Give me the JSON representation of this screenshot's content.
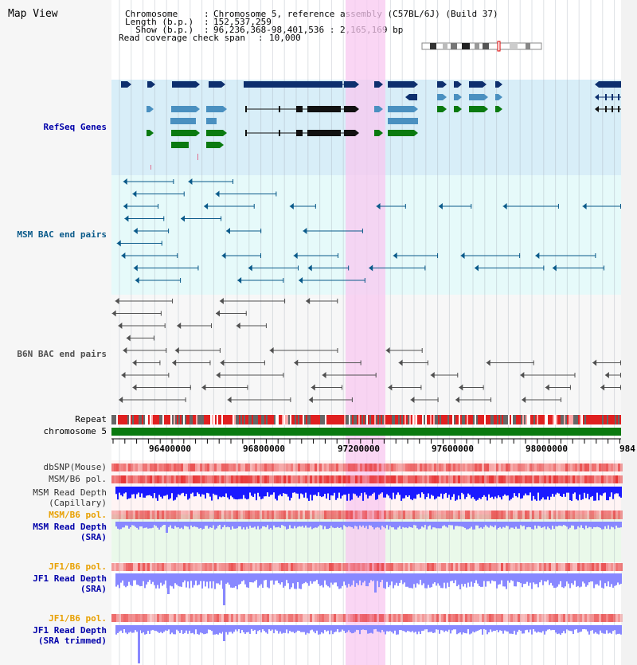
{
  "page": {
    "title": "Map View",
    "header": {
      "chromosome_key": "Chromosome    ",
      "chromosome_value": "Chromosome 5, reference assembly (C57BL/6J) (Build 37)",
      "length_key": "Length (b.p.)",
      "length_value": "152,537,259",
      "show_key": "  Show (b.p.)",
      "show_value": "96,236,368-98,401,536 : 2,165,169 bp",
      "span_key": "Read coverage check span",
      "span_value": "10,000"
    }
  },
  "tracks": {
    "refseq": {
      "label": "RefSeq Genes",
      "color": "#0000aa"
    },
    "msm_bac": {
      "label": "MSM BAC end pairs",
      "color": "#0a5a8a"
    },
    "b6n_bac": {
      "label": "B6N BAC end pairs",
      "color": "#505050"
    },
    "repeat": {
      "label": "Repeat"
    },
    "chromosome": {
      "label": "chromosome 5"
    },
    "dbsnp": {
      "label": "dbSNP(Mouse)"
    },
    "msm_b6_pol_cap": {
      "label": "MSM/B6 pol."
    },
    "msm_depth_cap": {
      "label1": "MSM Read Depth",
      "label2": "(Capillary)"
    },
    "msm_b6_pol_sra": {
      "label": "MSM/B6 pol.",
      "color": "#e8a000"
    },
    "msm_depth_sra": {
      "label1": "MSM Read Depth",
      "label2": "(SRA)"
    },
    "jf1_b6_pol": {
      "label": "JF1/B6 pol.",
      "color": "#e8a000"
    },
    "jf1_depth_sra": {
      "label1": "JF1 Read Depth",
      "label2": "(SRA)"
    },
    "jf1_b6_pol2": {
      "label": "JF1/B6 pol.",
      "color": "#e8a000"
    },
    "jf1_depth_trim": {
      "label1": "JF1 Read Depth",
      "label2": "(SRA trimmed)"
    }
  },
  "axis": {
    "ticks": [
      "96400000",
      "96800000",
      "97200000",
      "97600000",
      "98000000",
      "984"
    ]
  },
  "colors": {
    "refseq_dark": "#0d2f6e",
    "refseq_mid": "#4a90c0",
    "refseq_green": "#0a7a10",
    "highlight": "#f8c8f0",
    "chromosome_bar": "#0a7a10",
    "depth_blue": "#1a1aff",
    "depth_light": "#8888ff"
  }
}
